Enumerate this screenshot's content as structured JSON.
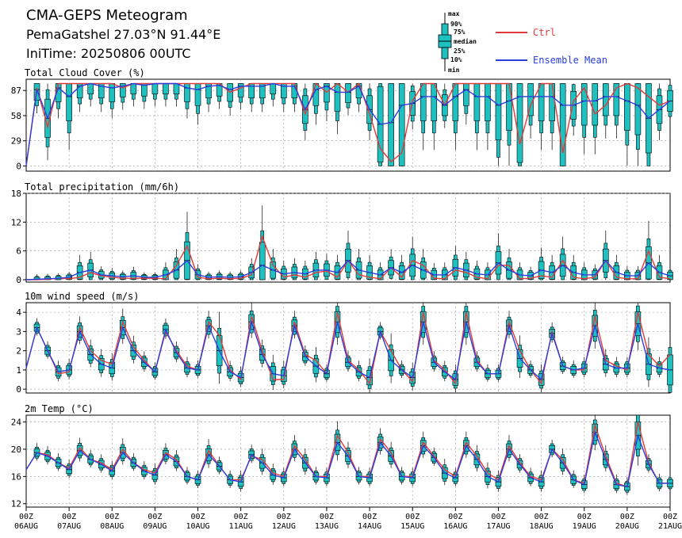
{
  "header": {
    "title": "CMA-GEPS Meteogram",
    "location": "PemaGatshel 27.03°N 91.44°E",
    "init_time": "IniTime: 20250806 00UTC"
  },
  "legend": {
    "box_labels": [
      "max",
      "90%",
      "75%",
      "median",
      "25%",
      "10%",
      "min"
    ],
    "ctrl_label": "Ctrl",
    "mean_label": "Ensemble Mean",
    "ctrl_color": "#e03a3a",
    "mean_color": "#2a3ee0",
    "box_color": "#1fc0c0"
  },
  "x_axis": {
    "ticks": [
      {
        "hour": "00Z",
        "date": "06AUG"
      },
      {
        "hour": "00Z",
        "date": "07AUG"
      },
      {
        "hour": "00Z",
        "date": "08AUG"
      },
      {
        "hour": "00Z",
        "date": "09AUG"
      },
      {
        "hour": "00Z",
        "date": "10AUG"
      },
      {
        "hour": "00Z",
        "date": "11AUG"
      },
      {
        "hour": "00Z",
        "date": "12AUG"
      },
      {
        "hour": "00Z",
        "date": "13AUG"
      },
      {
        "hour": "00Z",
        "date": "14AUG"
      },
      {
        "hour": "00Z",
        "date": "15AUG"
      },
      {
        "hour": "00Z",
        "date": "16AUG"
      },
      {
        "hour": "00Z",
        "date": "17AUG"
      },
      {
        "hour": "00Z",
        "date": "18AUG"
      },
      {
        "hour": "00Z",
        "date": "19AUG"
      },
      {
        "hour": "00Z",
        "date": "20AUG"
      },
      {
        "hour": "00Z",
        "date": "21AUG"
      }
    ]
  },
  "chart_data": [
    {
      "type": "line",
      "title": "Total Cloud Cover (%)",
      "ylim": [
        -6,
        100
      ],
      "yticks": [
        0,
        29,
        58,
        87
      ],
      "step_hours": 6,
      "series": [
        {
          "name": "Ctrl",
          "values": [
            0,
            90,
            45,
            95,
            95,
            95,
            95,
            95,
            95,
            90,
            95,
            95,
            95,
            95,
            95,
            95,
            95,
            95,
            95,
            85,
            90,
            95,
            95,
            95,
            95,
            95,
            60,
            95,
            85,
            95,
            85,
            95,
            60,
            20,
            5,
            15,
            75,
            95,
            95,
            70,
            95,
            95,
            95,
            95,
            95,
            95,
            25,
            70,
            95,
            95,
            15,
            75,
            90,
            60,
            70,
            90,
            95,
            90,
            80,
            70,
            75,
            90,
            20,
            60,
            15,
            5,
            80,
            5,
            80,
            70,
            75,
            5,
            15,
            95,
            20,
            60
          ]
        },
        {
          "name": "Ensemble Mean",
          "values": [
            0,
            88,
            55,
            90,
            80,
            92,
            95,
            92,
            90,
            92,
            95,
            93,
            95,
            95,
            95,
            90,
            88,
            92,
            93,
            88,
            92,
            92,
            92,
            95,
            92,
            92,
            65,
            88,
            92,
            85,
            85,
            92,
            65,
            48,
            50,
            70,
            72,
            80,
            80,
            70,
            80,
            88,
            80,
            80,
            70,
            75,
            80,
            80,
            80,
            80,
            70,
            70,
            75,
            75,
            80,
            80,
            75,
            70,
            55,
            65,
            75,
            70,
            45,
            65,
            60,
            50,
            50,
            60,
            75,
            60,
            65,
            55,
            60,
            75,
            70,
            70
          ]
        }
      ]
    },
    {
      "type": "line",
      "title": "Total precipitation (mm/6h)",
      "ylim": [
        -0.5,
        18
      ],
      "yticks": [
        0,
        6,
        12,
        18
      ],
      "step_hours": 6,
      "series": [
        {
          "name": "Ctrl",
          "values": [
            0,
            0,
            0.1,
            0.3,
            0.2,
            0.5,
            1.5,
            0.8,
            0.5,
            0.3,
            0.3,
            0.3,
            0.3,
            0.2,
            3,
            7,
            0.5,
            0.2,
            0.3,
            0.2,
            0.3,
            1,
            9,
            3,
            0.5,
            1,
            0.5,
            1.5,
            1.8,
            0.5,
            4,
            1,
            0.5,
            0.2,
            2.5,
            0.5,
            4,
            3,
            0.3,
            0.2,
            2,
            1.5,
            0.5,
            0.2,
            3,
            3,
            0.2,
            0.3,
            0.8,
            0.5,
            4,
            0.5,
            0.2,
            0.5,
            4,
            0.5,
            0.2,
            0.2,
            6,
            0.5,
            0.2,
            0.3,
            1,
            1,
            0.2,
            0.3,
            3,
            5,
            0.5,
            0.5,
            0.5,
            0.5,
            7,
            1.5,
            0.2
          ]
        },
        {
          "name": "Ensemble Mean",
          "values": [
            0,
            0.1,
            0.2,
            0.3,
            0.5,
            1.5,
            2,
            1,
            0.8,
            0.6,
            0.8,
            0.5,
            0.5,
            1,
            2,
            4,
            1,
            0.5,
            0.6,
            0.5,
            0.6,
            1.5,
            3,
            2,
            1.2,
            1.5,
            1.2,
            2,
            2,
            1.5,
            4,
            2,
            1.5,
            1,
            2.5,
            1.5,
            3,
            2,
            1,
            1,
            2.5,
            2,
            1.2,
            1,
            3.5,
            2,
            1,
            0.8,
            2,
            1.5,
            3,
            1.5,
            1,
            1,
            4,
            1.5,
            0.8,
            0.8,
            3.5,
            1.5,
            0.8,
            0.8,
            1.5,
            1.5,
            0.8,
            0.8,
            3,
            3,
            1,
            1,
            1.5,
            1.5,
            3,
            1.5,
            0.5
          ]
        }
      ]
    },
    {
      "type": "line",
      "title": "10m wind speed (m/s)",
      "ylim": [
        -0.2,
        4.5
      ],
      "yticks": [
        0,
        1,
        2,
        3,
        4
      ],
      "step_hours": 6,
      "series": [
        {
          "name": "Ctrl",
          "values": [
            1.1,
            3.2,
            2.0,
            0.8,
            0.9,
            3.2,
            2.0,
            1.5,
            1.3,
            3.5,
            2.2,
            1.5,
            0.9,
            3.0,
            2.0,
            1.2,
            1.0,
            3.5,
            2.8,
            1.0,
            0.5,
            3.8,
            2.0,
            0.5,
            0.5,
            3.5,
            1.8,
            1.5,
            0.8,
            4.0,
            1.5,
            1.0,
            0.3,
            3.0,
            2.0,
            1.0,
            0.4,
            4.0,
            1.5,
            1.0,
            0.3,
            4.0,
            1.5,
            0.8,
            0.8,
            3.5,
            2.0,
            1.0,
            0.3,
            3.0,
            1.2,
            1.0,
            1.0,
            3.8,
            1.5,
            1.2,
            1.0,
            4.0,
            1.8,
            1.2,
            1.8,
            3.8,
            1.5,
            0.8,
            0.5
          ]
        },
        {
          "name": "Ensemble Mean",
          "values": [
            1.1,
            3.2,
            2.0,
            0.9,
            1.0,
            3.0,
            1.8,
            1.3,
            1.1,
            3.2,
            2.0,
            1.4,
            0.9,
            3.1,
            1.9,
            1.1,
            1.0,
            3.3,
            2.0,
            0.9,
            0.6,
            3.5,
            1.8,
            0.8,
            0.7,
            3.3,
            1.7,
            1.2,
            0.8,
            3.5,
            1.4,
            0.9,
            0.6,
            3.0,
            1.5,
            1.0,
            0.6,
            3.5,
            1.4,
            0.9,
            0.5,
            3.5,
            1.4,
            0.8,
            0.8,
            3.3,
            1.6,
            1.0,
            0.5,
            2.9,
            1.2,
            1.0,
            1.1,
            3.3,
            1.3,
            1.1,
            1.1,
            3.4,
            1.3,
            1.1,
            1.0,
            3.6,
            1.5,
            1.0,
            0.9
          ]
        }
      ]
    },
    {
      "type": "line",
      "title": "2m Temp (°C)",
      "ylim": [
        11.5,
        25
      ],
      "yticks": [
        12,
        16,
        20,
        24
      ],
      "step_hours": 6,
      "series": [
        {
          "name": "Ctrl",
          "values": [
            17.0,
            19.5,
            19.2,
            18.0,
            17.2,
            20.2,
            18.5,
            18.0,
            17.0,
            20.0,
            18.0,
            17.0,
            16.5,
            19.5,
            18.5,
            16.0,
            15.5,
            19.8,
            17.5,
            15.5,
            15.5,
            19.0,
            18.5,
            16.5,
            16.0,
            20.5,
            18.5,
            16.0,
            16.0,
            22.0,
            19.5,
            16.0,
            16.0,
            21.5,
            19.5,
            16.0,
            16.0,
            21.0,
            19.0,
            17.0,
            16.0,
            21.0,
            19.0,
            16.5,
            15.5,
            20.5,
            18.0,
            16.0,
            15.5,
            20.0,
            18.5,
            15.5,
            15.0,
            23.5,
            19.0,
            15.0,
            14.5,
            24.0,
            18.0,
            15.0,
            15.0,
            24.0,
            18.0,
            14.0,
            14.5
          ]
        },
        {
          "name": "Ensemble Mean",
          "values": [
            17.0,
            19.5,
            19.0,
            18.0,
            17.0,
            19.8,
            18.5,
            17.8,
            16.8,
            19.5,
            18.0,
            16.8,
            16.2,
            19.2,
            18.2,
            16.0,
            15.5,
            19.2,
            17.5,
            15.5,
            15.2,
            19.2,
            18.0,
            16.2,
            15.8,
            20.0,
            18.0,
            16.0,
            15.8,
            21.0,
            19.0,
            16.0,
            15.8,
            21.0,
            19.0,
            16.0,
            15.8,
            20.5,
            18.8,
            16.5,
            15.8,
            20.5,
            18.5,
            16.0,
            15.2,
            20.0,
            17.8,
            15.8,
            15.2,
            20.0,
            18.0,
            15.5,
            14.8,
            22.5,
            18.5,
            14.8,
            14.5,
            22.0,
            17.8,
            15.0,
            15.0,
            21.5,
            17.5,
            14.2,
            15.0
          ]
        }
      ]
    }
  ]
}
